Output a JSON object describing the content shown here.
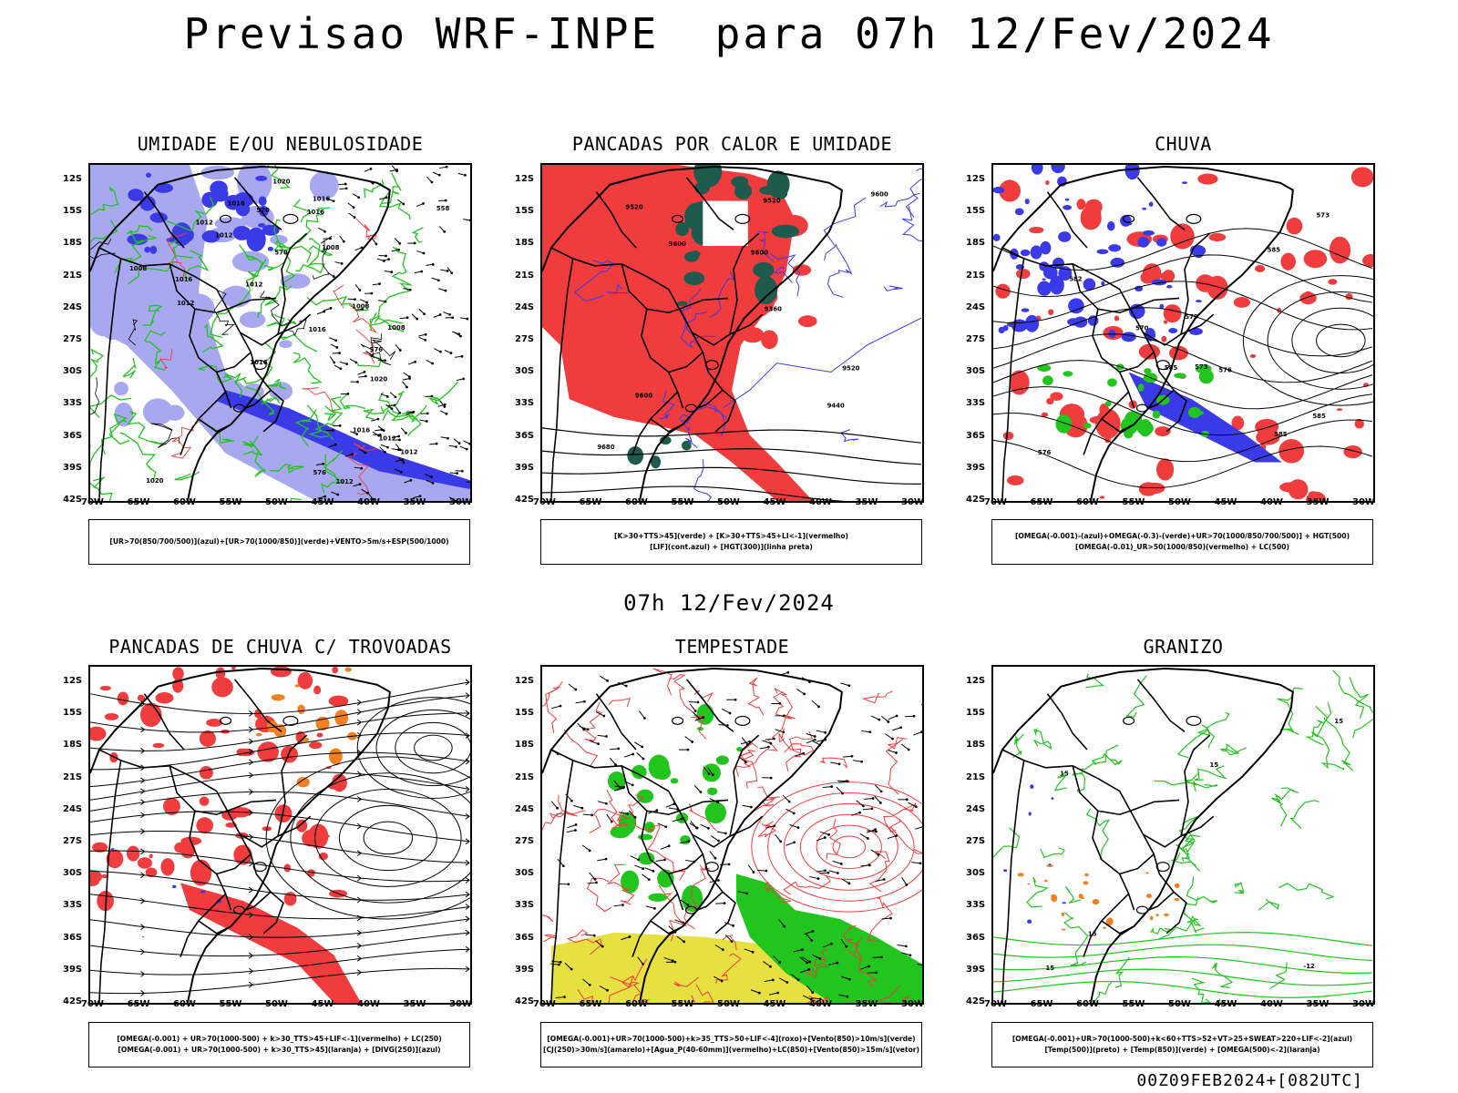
{
  "header": {
    "title": "Previsao WRF-INPE  para 07h 12/Fev/2024"
  },
  "middle": {
    "title": "07h 12/Fev/2024"
  },
  "footer": {
    "run": "00Z09FEB2024+[082UTC]"
  },
  "axes": {
    "lat_labels": [
      "12S",
      "15S",
      "18S",
      "21S",
      "24S",
      "27S",
      "30S",
      "33S",
      "36S",
      "39S",
      "42S"
    ],
    "lon_labels": [
      "70W",
      "65W",
      "60W",
      "55W",
      "50W",
      "45W",
      "40W",
      "35W",
      "30W"
    ]
  },
  "colors": {
    "blue": "#3a3ae8",
    "lightblue": "#a8a8f0",
    "green": "#22c41e",
    "red": "#f03c3c",
    "darkgreen": "#1e5a4e",
    "yellow": "#e6e040",
    "orange": "#f08020"
  },
  "panels": [
    {
      "title": "UMIDADE E/OU NEBULOSIDADE",
      "legend": [
        "[UR>70(850/700/500)](azul)+[UR>70(1000/850)](verde)+VENTO>5m/s+ESP(500/1000)"
      ],
      "contour_labels": [
        "1012",
        "1016",
        "1016",
        "1016",
        "1020",
        "1016",
        "1008",
        "1008",
        "1012",
        "1012",
        "1008",
        "1016",
        "1012",
        "1008",
        "1020",
        "1016",
        "1012",
        "1012",
        "1020",
        "1016",
        "1012",
        "576",
        "570",
        "576",
        "570",
        "558"
      ]
    },
    {
      "title": "PANCADAS POR CALOR E UMIDADE",
      "legend": [
        "[K>30+TTS>45](verde) + [K>30+TTS>45+LI<-1](vermelho)",
        "[LIF](cont.azul) + [HGT(300)](linha preta)"
      ],
      "contour_labels": [
        "9600",
        "9600",
        "9520",
        "9680",
        "9600",
        "9600",
        "9520",
        "9440",
        "9360",
        "9520"
      ]
    },
    {
      "title": "CHUVA",
      "legend": [
        "[OMEGA(-0.001)-(azul)+OMEGA(-0.3)-(verde)+UR>70(1000/850/700/500)] + HGT(500)",
        "[OMEGA(-0.01)_UR>50(1000/850)(vermelho) + LC(500)"
      ],
      "contour_labels": [
        "585",
        "585",
        "585",
        "585",
        "582",
        "579",
        "576",
        "573",
        "570",
        "576",
        "573"
      ]
    },
    {
      "title": "PANCADAS DE CHUVA C/ TROVOADAS",
      "legend": [
        "[OMEGA(-0.001) + UR>70(1000-500) + k>30_TTS>45+LIF<-1](vermelho) + LC(250)",
        "[OMEGA(-0.001) + UR>70(1000-500) + k>30_TTS>45](laranja) + [DIVG(250)](azul)"
      ],
      "contour_labels": []
    },
    {
      "title": "TEMPESTADE",
      "legend": [
        "[OMEGA(-0.001)+UR>70(1000-500)+k>35_TTS>50+LIF<-4](roxo)+[Vento(850)>10m/s](verde)",
        "[CJ(250)>30m/s](amarelo)+[Agua_P(40-60mm)](vermelho)+LC(850)+[Vento(850)>15m/s](vetor)"
      ],
      "contour_labels": []
    },
    {
      "title": "GRANIZO",
      "legend": [
        "[OMEGA(-0.001)+UR>70(1000-500)+k<60+TTS>52+VT>25+SWEAT>220+LIF<-2](azul)",
        "[Temp(500)](preto) + [Temp(850)](verde) + [OMEGA(500)<-2](laranja)"
      ],
      "contour_labels": [
        "15",
        "15",
        "15",
        "15",
        "-12",
        "15"
      ]
    }
  ]
}
